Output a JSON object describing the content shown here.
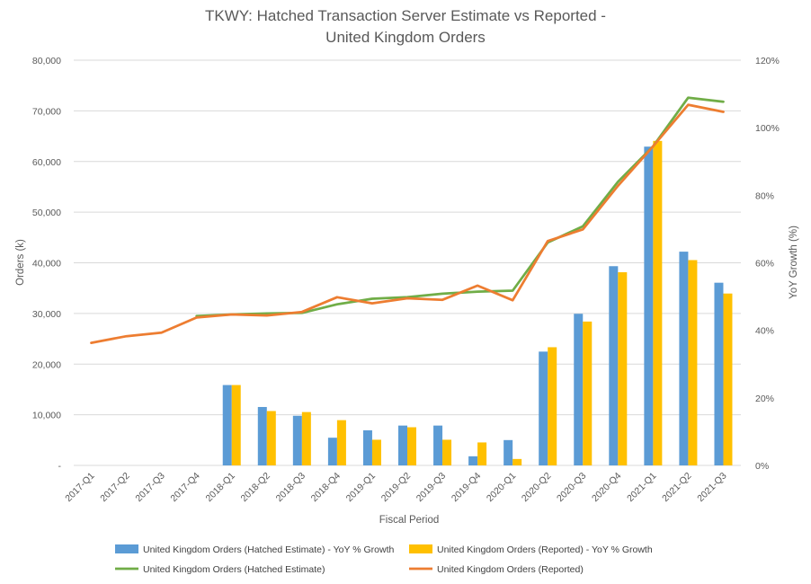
{
  "chart_data": {
    "type": "bar",
    "title_line1": "TKWY: Hatched Transaction Server Estimate vs Reported -",
    "title_line2": "United Kingdom Orders",
    "xlabel": "Fiscal Period",
    "ylabel": "Orders (k)",
    "y2label": "YoY Growth (%)",
    "ylim": [
      0,
      80000
    ],
    "y2lim": [
      0,
      120
    ],
    "yticks": [
      0,
      10000,
      20000,
      30000,
      40000,
      50000,
      60000,
      70000,
      80000
    ],
    "ytick_labels": [
      "-",
      "10,000",
      "20,000",
      "30,000",
      "40,000",
      "50,000",
      "60,000",
      "70,000",
      "80,000"
    ],
    "y2ticks": [
      0,
      20,
      40,
      60,
      80,
      100,
      120
    ],
    "y2tick_labels": [
      "0%",
      "20%",
      "40%",
      "60%",
      "80%",
      "100%",
      "120%"
    ],
    "grid": true,
    "legend_position": "bottom",
    "categories": [
      "2017-Q1",
      "2017-Q2",
      "2017-Q3",
      "2017-Q4",
      "2018-Q1",
      "2018-Q2",
      "2018-Q3",
      "2018-Q4",
      "2019-Q1",
      "2019-Q2",
      "2019-Q3",
      "2019-Q4",
      "2020-Q1",
      "2020-Q2",
      "2020-Q3",
      "2020-Q4",
      "2021-Q1",
      "2021-Q2",
      "2021-Q3"
    ],
    "bar_series": [
      {
        "name": "United Kingdom Orders (Hatched Estimate) - YoY % Growth",
        "color": "#5b9bd5",
        "axis": "y2",
        "values": [
          null,
          null,
          null,
          null,
          23.8,
          17.3,
          14.7,
          8.2,
          10.4,
          11.8,
          11.8,
          2.7,
          7.5,
          33.7,
          44.9,
          59.0,
          94.4,
          63.3,
          54.1
        ]
      },
      {
        "name": "United Kingdom Orders (Reported) - YoY % Growth",
        "color": "#ffc000",
        "axis": "y2",
        "values": [
          null,
          null,
          null,
          null,
          23.8,
          16.1,
          15.8,
          13.4,
          7.6,
          11.3,
          7.6,
          6.8,
          1.9,
          35.0,
          42.6,
          57.2,
          96.1,
          60.8,
          50.9
        ]
      }
    ],
    "line_series": [
      {
        "name": "United Kingdom Orders (Hatched Estimate)",
        "color": "#70ad47",
        "axis": "y",
        "values": [
          null,
          null,
          null,
          29500,
          29800,
          30000,
          30100,
          31800,
          32900,
          33200,
          33900,
          34300,
          34500,
          44000,
          47200,
          56000,
          63000,
          72600,
          71800
        ]
      },
      {
        "name": "United Kingdom Orders (Reported)",
        "color": "#ed7d31",
        "axis": "y",
        "values": [
          24200,
          25500,
          26200,
          29200,
          29800,
          29600,
          30300,
          33200,
          32000,
          33000,
          32700,
          35500,
          32600,
          44300,
          46600,
          55200,
          63000,
          71200,
          69800
        ]
      }
    ]
  }
}
